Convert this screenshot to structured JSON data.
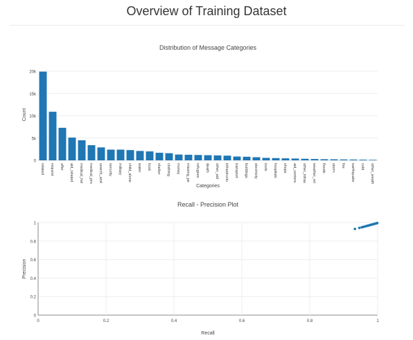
{
  "page": {
    "title": "Overview of Training Dataset"
  },
  "colors": {
    "bar": "#1f77b4",
    "grid": "#eeeeee",
    "axis": "#444444"
  },
  "chart_data": [
    {
      "type": "bar",
      "title": "Distribution of Message Categories",
      "xlabel": "Categories",
      "ylabel": "Count",
      "ylim": [
        0,
        20000
      ],
      "yticks": [
        0,
        5000,
        10000,
        15000,
        20000
      ],
      "ytick_labels": [
        "0",
        "5k",
        "10k",
        "15k",
        "20k"
      ],
      "grid": true,
      "categories": [
        "related",
        "request",
        "offer",
        "aid_related",
        "medical_hel",
        "medical_pro",
        "search_and",
        "security",
        "military",
        "child_alone",
        "water",
        "food",
        "shelter",
        "clothing",
        "money",
        "missing_pe",
        "refugees",
        "death",
        "other_aid",
        "infrastructu",
        "transport",
        "buildings",
        "electricity",
        "tools",
        "hospitals",
        "shops",
        "aid_centers",
        "other_infras",
        "weather_rel",
        "floods",
        "storm",
        "fire",
        "earthquake",
        "cold",
        "other_weath"
      ],
      "values": [
        19900,
        10900,
        7300,
        5100,
        4500,
        3400,
        2900,
        2400,
        2400,
        2300,
        2100,
        2000,
        1700,
        1600,
        1300,
        1250,
        1200,
        1150,
        1100,
        1050,
        850,
        800,
        700,
        550,
        500,
        450,
        400,
        350,
        300,
        250,
        230,
        200,
        180,
        150,
        120
      ]
    },
    {
      "type": "scatter",
      "title": "Recall - Precision Plot",
      "xlabel": "Recall",
      "ylabel": "Precision",
      "xlim": [
        0,
        1
      ],
      "ylim": [
        0,
        1
      ],
      "xticks": [
        0,
        0.2,
        0.4,
        0.6,
        0.8,
        1
      ],
      "xtick_labels": [
        "0",
        "0.2",
        "0.4",
        "0.6",
        "0.8",
        "1"
      ],
      "yticks": [
        0,
        0.2,
        0.4,
        0.6,
        0.8,
        1
      ],
      "ytick_labels": [
        "0",
        "0.2",
        "0.4",
        "0.6",
        "0.8",
        "1"
      ],
      "grid": true,
      "x": [
        0.933,
        0.946,
        0.953,
        0.958,
        0.962,
        0.966,
        0.97,
        0.973,
        0.976,
        0.979,
        0.982,
        0.985,
        0.988,
        0.991,
        0.994,
        0.997,
        0.999
      ],
      "y": [
        0.931,
        0.942,
        0.948,
        0.953,
        0.957,
        0.961,
        0.965,
        0.968,
        0.971,
        0.974,
        0.977,
        0.98,
        0.983,
        0.986,
        0.989,
        0.992,
        0.995
      ]
    }
  ]
}
